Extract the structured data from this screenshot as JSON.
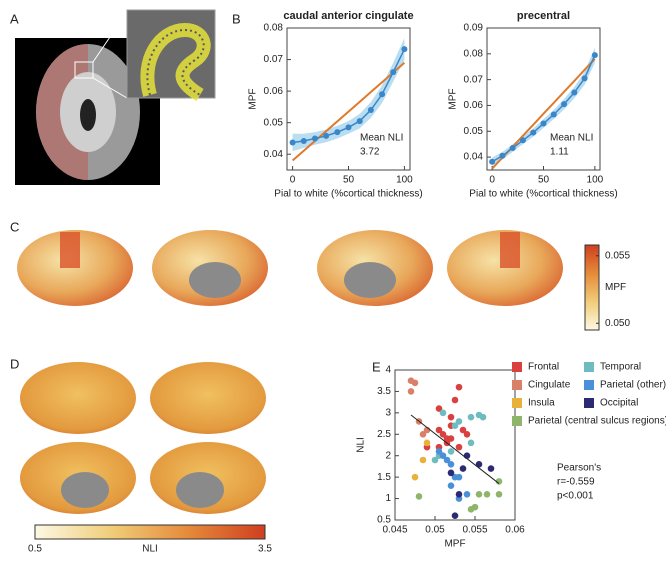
{
  "panel_labels": [
    "A",
    "B",
    "C",
    "D",
    "E"
  ],
  "chart_data": [
    {
      "type": "line",
      "title": "caudal anterior cingulate",
      "xlabel": "Pial to white (%cortical thickness)",
      "ylabel": "MPF",
      "x": [
        0,
        10,
        20,
        30,
        40,
        50,
        60,
        70,
        80,
        90,
        100
      ],
      "series": [
        {
          "color": "#3a86c8",
          "values": [
            0.0437,
            0.0442,
            0.045,
            0.0458,
            0.047,
            0.0485,
            0.0505,
            0.054,
            0.059,
            0.066,
            0.0733
          ]
        },
        {
          "color": "#e07a2b",
          "values": [
            0.038,
            0.0411,
            0.0442,
            0.0473,
            0.0504,
            0.0535,
            0.0566,
            0.0597,
            0.0628,
            0.0659,
            0.069
          ]
        }
      ],
      "band": {
        "color": "#a8d4ee",
        "upper": [
          0.0465,
          0.0465,
          0.047,
          0.0478,
          0.049,
          0.0505,
          0.0528,
          0.0565,
          0.0618,
          0.069,
          0.0768
        ],
        "lower": [
          0.041,
          0.042,
          0.043,
          0.0438,
          0.045,
          0.0465,
          0.0482,
          0.0515,
          0.0562,
          0.063,
          0.0698
        ]
      },
      "annotations": [
        "Mean NLI",
        "3.72"
      ],
      "xlim": [
        -5,
        105
      ],
      "xticks": [
        0,
        50,
        100
      ],
      "ylim": [
        0.035,
        0.08
      ],
      "yticks": [
        0.04,
        0.05,
        0.06,
        0.07,
        0.08
      ]
    },
    {
      "type": "line",
      "title": "precentral",
      "xlabel": "Pial to white (%cortical thickness)",
      "ylabel": "MPF",
      "x": [
        0,
        10,
        20,
        30,
        40,
        50,
        60,
        70,
        80,
        90,
        100
      ],
      "series": [
        {
          "color": "#3a86c8",
          "values": [
            0.0382,
            0.0405,
            0.0435,
            0.0465,
            0.0495,
            0.053,
            0.0565,
            0.0605,
            0.065,
            0.0705,
            0.0795
          ]
        },
        {
          "color": "#e07a2b",
          "values": [
            0.0355,
            0.0398,
            0.044,
            0.0483,
            0.0525,
            0.0568,
            0.061,
            0.0653,
            0.0695,
            0.0738,
            0.078
          ]
        }
      ],
      "band": {
        "color": "#a8d4ee",
        "upper": [
          0.0398,
          0.042,
          0.045,
          0.048,
          0.0511,
          0.0547,
          0.0583,
          0.0625,
          0.0672,
          0.073,
          0.0825
        ],
        "lower": [
          0.0366,
          0.039,
          0.042,
          0.045,
          0.0479,
          0.0513,
          0.0547,
          0.0585,
          0.0628,
          0.068,
          0.0765
        ]
      },
      "annotations": [
        "Mean NLI",
        "1.11"
      ],
      "xlim": [
        -5,
        105
      ],
      "xticks": [
        0,
        50,
        100
      ],
      "ylim": [
        0.035,
        0.09
      ],
      "yticks": [
        0.04,
        0.05,
        0.06,
        0.07,
        0.08,
        0.09
      ]
    },
    {
      "type": "scatter",
      "xlabel": "MPF",
      "ylabel": "NLI",
      "xlim": [
        0.045,
        0.06
      ],
      "xticks": [
        0.045,
        0.05,
        0.055,
        0.06
      ],
      "ylim": [
        0.5,
        4
      ],
      "yticks": [
        0.5,
        1,
        1.5,
        2,
        2.5,
        3,
        3.5,
        4
      ],
      "series": [
        {
          "name": "Frontal",
          "color": "#d9413f",
          "x": [
            0.0505,
            0.051,
            0.0515,
            0.052,
            0.0525,
            0.053,
            0.0505,
            0.0515,
            0.052,
            0.0535,
            0.053,
            0.054,
            0.0505,
            0.052,
            0.049
          ],
          "y": [
            2.6,
            2.5,
            2.4,
            2.7,
            3.3,
            3.6,
            2.2,
            2.3,
            2.4,
            2.6,
            2.2,
            2.5,
            3.1,
            2.9,
            2.2
          ]
        },
        {
          "name": "Temporal",
          "color": "#6fbcc0",
          "x": [
            0.0545,
            0.0555,
            0.056,
            0.053,
            0.051,
            0.0525,
            0.0505,
            0.0545,
            0.052,
            0.05
          ],
          "y": [
            2.9,
            2.95,
            2.9,
            2.8,
            3.0,
            2.7,
            2.0,
            2.3,
            2.1,
            1.9
          ]
        },
        {
          "name": "Cingulate",
          "color": "#d98068",
          "x": [
            0.047,
            0.0475,
            0.047,
            0.048,
            0.0485,
            0.049
          ],
          "y": [
            3.75,
            3.7,
            3.5,
            2.8,
            2.5,
            2.6
          ]
        },
        {
          "name": "Parietal (other)",
          "color": "#4a90d9",
          "x": [
            0.051,
            0.0515,
            0.0505,
            0.052,
            0.053,
            0.053,
            0.052,
            0.054,
            0.0525
          ],
          "y": [
            2.0,
            1.9,
            2.1,
            1.8,
            1.5,
            1.0,
            1.3,
            1.1,
            1.5
          ]
        },
        {
          "name": "Insula",
          "color": "#e8b23a",
          "x": [
            0.0485,
            0.0475,
            0.049
          ],
          "y": [
            1.9,
            1.5,
            2.3
          ]
        },
        {
          "name": "Occipital",
          "color": "#2b2a72",
          "x": [
            0.052,
            0.0535,
            0.054,
            0.0555,
            0.057,
            0.053,
            0.0525
          ],
          "y": [
            1.6,
            1.7,
            2.0,
            1.8,
            1.7,
            1.1,
            0.6
          ]
        },
        {
          "name": "Parietal (central sulcus regions)",
          "color": "#8fb56a",
          "x": [
            0.0545,
            0.055,
            0.0565,
            0.0555,
            0.058,
            0.058,
            0.048
          ],
          "y": [
            0.75,
            0.8,
            1.1,
            1.1,
            1.4,
            1.1,
            1.05
          ]
        }
      ],
      "trend": {
        "color": "#222222",
        "x": [
          0.047,
          0.058
        ],
        "y": [
          2.95,
          1.35
        ]
      },
      "annotations": [
        "Pearson's",
        "r=-0.559",
        "p<0.001"
      ]
    },
    {
      "type": "colorbar",
      "orientation": "vertical",
      "label": "MPF",
      "lim": [
        0.0495,
        0.0558
      ],
      "ticks": [
        {
          "value": 0.05,
          "label": "0.050"
        },
        {
          "value": 0.055,
          "label": "0.055"
        }
      ],
      "colors": [
        "#fdf8e4",
        "#f0cd78",
        "#e58a3a",
        "#cf3f1f"
      ]
    },
    {
      "type": "colorbar",
      "orientation": "horizontal",
      "label": "NLI",
      "lim": [
        0.5,
        3.5
      ],
      "ticks": [
        0.5,
        3.5
      ],
      "colors": [
        "#fdf8e4",
        "#f0cd78",
        "#e58a3a",
        "#cf3f1f"
      ]
    }
  ]
}
